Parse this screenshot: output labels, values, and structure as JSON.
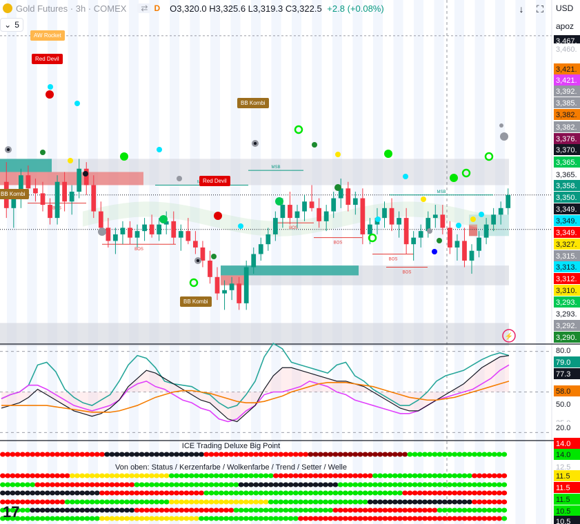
{
  "legend": {
    "symbol": "Gold Futures",
    "sep1": " · ",
    "timeframe": "3h",
    "sep2": " · ",
    "exchange": "COMEX",
    "market_badge": "D",
    "open_label": "O",
    "open": "3,320.0",
    "high_label": "H",
    "high": "3,325.6",
    "low_label": "L",
    "low": "3,319.3",
    "close_label": "C",
    "close": "3,322.5",
    "change": "+2.8 (+0.08%)"
  },
  "toolbar": {
    "collapse_label": "5",
    "currency": "USD",
    "apoz": "apoz"
  },
  "colors": {
    "up": "#089981",
    "down": "#f23645",
    "teal": "#26a69a",
    "magenta": "#e040fb",
    "orange": "#f57c00",
    "dark": "#131722",
    "bos_red": "#e53935",
    "label_brown": "#9c6e1e",
    "red_devil": "#e00000"
  },
  "annotations": {
    "aw_rocket": "AW Rocket",
    "red_devil_1": "Red Devil",
    "red_devil_2": "Red Devil",
    "bb_kombi_1": "BB Kombi",
    "bb_kombi_2": "BB Kombi",
    "bb_kombi_3": "BB Kombi",
    "bos": "BOS",
    "msb": "MSB"
  },
  "indicator_titles": {
    "big_point": "ICE Trading Deluxe Big Point",
    "rows_label": "Von oben: Status / Kerzenfarbe / Wolkenfarbe / Trend / Setter / Welle"
  },
  "price_scale": {
    "labels": [
      {
        "text": "3,467.",
        "bg": "#131722",
        "fg": "#ffffff"
      },
      {
        "text": "3,460.",
        "bg": "#ffffff",
        "fg": "#b2b5be"
      },
      {
        "text": "3,421.",
        "bg": "#f57c00",
        "fg": "#131722"
      },
      {
        "text": "3,421.",
        "bg": "#e040fb",
        "fg": "#ffffff"
      },
      {
        "text": "3,392.",
        "bg": "#9598a1",
        "fg": "#ffffff"
      },
      {
        "text": "3,385.",
        "bg": "#9598a1",
        "fg": "#ffffff"
      },
      {
        "text": "3,382.",
        "bg": "#f57c00",
        "fg": "#131722"
      },
      {
        "text": "3,382.",
        "bg": "#9598a1",
        "fg": "#ffffff"
      },
      {
        "text": "3,376.",
        "bg": "#880e4f",
        "fg": "#ffffff"
      },
      {
        "text": "3,370.",
        "bg": "#131722",
        "fg": "#ffffff"
      },
      {
        "text": "3,365.",
        "bg": "#00c853",
        "fg": "#ffffff"
      },
      {
        "text": "3,365.",
        "bg": "#ffffff",
        "fg": "#131722"
      },
      {
        "text": "3,358.",
        "bg": "#089981",
        "fg": "#ffffff"
      },
      {
        "text": "3,350.",
        "bg": "#089981",
        "fg": "#ffffff"
      },
      {
        "text": "3,349.",
        "bg": "#131722",
        "fg": "#ffffff"
      },
      {
        "text": "3,349.",
        "bg": "#00e5ff",
        "fg": "#131722"
      },
      {
        "text": "3,349.",
        "bg": "#ff0000",
        "fg": "#ffffff"
      },
      {
        "text": "3,327.",
        "bg": "#ffe600",
        "fg": "#131722"
      },
      {
        "text": "3,315.",
        "bg": "#9598a1",
        "fg": "#ffffff"
      },
      {
        "text": "3,313.",
        "bg": "#00e5ff",
        "fg": "#131722"
      },
      {
        "text": "3,312.",
        "bg": "#ff0000",
        "fg": "#ffffff"
      },
      {
        "text": "3,310.",
        "bg": "#ffe600",
        "fg": "#131722"
      },
      {
        "text": "3,293.",
        "bg": "#00c853",
        "fg": "#ffffff"
      },
      {
        "text": "3,293.",
        "bg": "#ffffff",
        "fg": "#131722"
      },
      {
        "text": "3,292.",
        "bg": "#9598a1",
        "fg": "#ffffff"
      },
      {
        "text": "3,290.",
        "bg": "#1b8a2f",
        "fg": "#ffffff"
      }
    ]
  },
  "osc_scale": {
    "labels": [
      {
        "text": "80.0",
        "bg": "#ffffff",
        "fg": "#131722"
      },
      {
        "text": "79.0",
        "bg": "#089981",
        "fg": "#ffffff"
      },
      {
        "text": "77.3",
        "bg": "#131722",
        "fg": "#ffffff"
      },
      {
        "text": "58.0",
        "bg": "#f57c00",
        "fg": "#131722"
      },
      {
        "text": "50.0",
        "bg": "#ffffff",
        "fg": "#131722"
      },
      {
        "text": "25.0",
        "bg": "#ffffff",
        "fg": "#b2b5be"
      },
      {
        "text": "20.0",
        "bg": "#ffffff",
        "fg": "#131722"
      }
    ]
  },
  "dots_scale": {
    "labels": [
      {
        "text": "14.0",
        "bg": "#ff0000",
        "fg": "#ffffff"
      },
      {
        "text": "14.0",
        "bg": "#00e600",
        "fg": "#131722"
      },
      {
        "text": "12.5",
        "bg": "#ffffff",
        "fg": "#b2b5be"
      },
      {
        "text": "11.5",
        "bg": "#ffe600",
        "fg": "#131722"
      },
      {
        "text": "11.5",
        "bg": "#ff0000",
        "fg": "#ffffff"
      },
      {
        "text": "11.5",
        "bg": "#00e600",
        "fg": "#131722"
      },
      {
        "text": "10.5",
        "bg": "#00e600",
        "fg": "#131722"
      },
      {
        "text": "10.5",
        "bg": "#131722",
        "fg": "#ffffff"
      }
    ]
  },
  "chart_data": [
    {
      "type": "candlestick",
      "title": "Gold Futures · 3h · COMEX",
      "ylim": [
        3280,
        3472
      ],
      "last_close": 3370,
      "candles": [
        [
          3378,
          3390,
          3356,
          3362
        ],
        [
          3362,
          3372,
          3350,
          3368
        ],
        [
          3368,
          3386,
          3362,
          3382
        ],
        [
          3382,
          3388,
          3370,
          3374
        ],
        [
          3374,
          3380,
          3366,
          3371
        ],
        [
          3371,
          3378,
          3360,
          3364
        ],
        [
          3364,
          3368,
          3352,
          3356
        ],
        [
          3356,
          3382,
          3352,
          3378
        ],
        [
          3378,
          3384,
          3360,
          3366
        ],
        [
          3366,
          3376,
          3358,
          3372
        ],
        [
          3372,
          3392,
          3368,
          3386
        ],
        [
          3386,
          3390,
          3370,
          3376
        ],
        [
          3376,
          3382,
          3356,
          3360
        ],
        [
          3360,
          3366,
          3346,
          3350
        ],
        [
          3350,
          3356,
          3338,
          3342
        ],
        [
          3342,
          3350,
          3334,
          3346
        ],
        [
          3346,
          3354,
          3340,
          3350
        ],
        [
          3350,
          3354,
          3340,
          3344
        ],
        [
          3344,
          3352,
          3338,
          3348
        ],
        [
          3348,
          3356,
          3342,
          3352
        ],
        [
          3352,
          3358,
          3344,
          3346
        ],
        [
          3346,
          3356,
          3342,
          3352
        ],
        [
          3352,
          3360,
          3346,
          3354
        ],
        [
          3354,
          3360,
          3340,
          3344
        ],
        [
          3344,
          3352,
          3336,
          3348
        ],
        [
          3348,
          3356,
          3340,
          3342
        ],
        [
          3342,
          3348,
          3334,
          3338
        ],
        [
          3338,
          3342,
          3326,
          3330
        ],
        [
          3330,
          3336,
          3316,
          3320
        ],
        [
          3320,
          3326,
          3306,
          3310
        ],
        [
          3310,
          3318,
          3300,
          3312
        ],
        [
          3312,
          3320,
          3306,
          3316
        ],
        [
          3316,
          3320,
          3300,
          3304
        ],
        [
          3304,
          3330,
          3300,
          3326
        ],
        [
          3326,
          3338,
          3322,
          3334
        ],
        [
          3334,
          3344,
          3330,
          3340
        ],
        [
          3340,
          3350,
          3336,
          3346
        ],
        [
          3346,
          3360,
          3342,
          3356
        ],
        [
          3356,
          3368,
          3350,
          3364
        ],
        [
          3364,
          3372,
          3352,
          3356
        ],
        [
          3356,
          3364,
          3350,
          3360
        ],
        [
          3360,
          3370,
          3354,
          3366
        ],
        [
          3366,
          3376,
          3360,
          3362
        ],
        [
          3362,
          3368,
          3350,
          3354
        ],
        [
          3354,
          3364,
          3348,
          3360
        ],
        [
          3360,
          3372,
          3356,
          3368
        ],
        [
          3368,
          3380,
          3362,
          3374
        ],
        [
          3374,
          3378,
          3360,
          3364
        ],
        [
          3364,
          3372,
          3358,
          3368
        ],
        [
          3368,
          3374,
          3340,
          3346
        ],
        [
          3346,
          3356,
          3340,
          3352
        ],
        [
          3352,
          3362,
          3346,
          3356
        ],
        [
          3356,
          3366,
          3350,
          3362
        ],
        [
          3362,
          3368,
          3348,
          3352
        ],
        [
          3352,
          3360,
          3344,
          3356
        ],
        [
          3356,
          3362,
          3334,
          3340
        ],
        [
          3340,
          3348,
          3330,
          3344
        ],
        [
          3344,
          3352,
          3338,
          3348
        ],
        [
          3348,
          3360,
          3344,
          3356
        ],
        [
          3356,
          3364,
          3350,
          3358
        ],
        [
          3358,
          3364,
          3346,
          3350
        ],
        [
          3350,
          3354,
          3334,
          3338
        ],
        [
          3338,
          3346,
          3330,
          3342
        ],
        [
          3342,
          3350,
          3326,
          3330
        ],
        [
          3330,
          3340,
          3322,
          3336
        ],
        [
          3336,
          3348,
          3332,
          3344
        ],
        [
          3344,
          3356,
          3340,
          3352
        ],
        [
          3352,
          3362,
          3348,
          3358
        ],
        [
          3358,
          3366,
          3352,
          3362
        ],
        [
          3362,
          3374,
          3358,
          3370
        ]
      ],
      "levels": [
        3467,
        3421,
        3392,
        3385,
        3382,
        3376,
        3370,
        3365,
        3358,
        3350,
        3349,
        3327,
        3315,
        3313,
        3312,
        3310,
        3293,
        3292,
        3290
      ]
    },
    {
      "type": "line",
      "title": "",
      "ylim": [
        15,
        85
      ],
      "series": [
        {
          "color": "#26a69a",
          "values": [
            45,
            48,
            50,
            55,
            70,
            72,
            65,
            52,
            46,
            42,
            40,
            44,
            48,
            58,
            70,
            77,
            75,
            68,
            58,
            56,
            55,
            54,
            50,
            48,
            42,
            38,
            40,
            48,
            58,
            76,
            86,
            82,
            72,
            70,
            68,
            66,
            64,
            70,
            72,
            62,
            58,
            52,
            48,
            44,
            40,
            40,
            44,
            50,
            58,
            62,
            64,
            66,
            70,
            74,
            77,
            79,
            77
          ]
        },
        {
          "color": "#e040fb",
          "values": [
            45,
            48,
            50,
            55,
            55,
            52,
            48,
            44,
            40,
            38,
            36,
            38,
            40,
            44,
            52,
            56,
            58,
            54,
            52,
            48,
            44,
            42,
            38,
            36,
            30,
            28,
            30,
            36,
            40,
            48,
            50,
            50,
            52,
            54,
            58,
            56,
            54,
            50,
            48,
            44,
            42,
            40,
            38,
            36,
            34,
            34,
            36,
            40,
            44,
            46,
            48,
            50,
            52,
            56,
            60,
            66,
            70
          ]
        },
        {
          "color": "#131722",
          "values": [
            38,
            40,
            42,
            46,
            52,
            48,
            44,
            40,
            36,
            34,
            32,
            34,
            38,
            44,
            54,
            60,
            66,
            64,
            60,
            56,
            52,
            48,
            44,
            42,
            36,
            30,
            28,
            34,
            40,
            52,
            62,
            68,
            68,
            66,
            64,
            62,
            60,
            58,
            58,
            56,
            54,
            50,
            46,
            42,
            38,
            36,
            36,
            40,
            44,
            48,
            52,
            56,
            62,
            68,
            72,
            76,
            77
          ]
        },
        {
          "color": "#f57c00",
          "values": [
            40,
            40,
            40,
            40,
            40,
            40,
            39,
            38,
            37,
            36,
            35,
            35,
            35,
            36,
            38,
            40,
            43,
            46,
            48,
            50,
            51,
            51,
            50,
            49,
            47,
            45,
            43,
            42,
            42,
            43,
            45,
            47,
            50,
            52,
            54,
            56,
            57,
            57,
            57,
            56,
            55,
            54,
            52,
            50,
            48,
            46,
            45,
            44,
            44,
            45,
            46,
            48,
            50,
            52,
            54,
            56,
            58
          ]
        }
      ],
      "levels": [
        80,
        50,
        20
      ]
    },
    {
      "type": "table",
      "title": "ICE Trading Deluxe Big Point",
      "rows": [
        "Big Point",
        "Status",
        "Kerzenfarbe",
        "Wolkenfarbe",
        "Trend",
        "Setter",
        "Welle"
      ]
    }
  ]
}
